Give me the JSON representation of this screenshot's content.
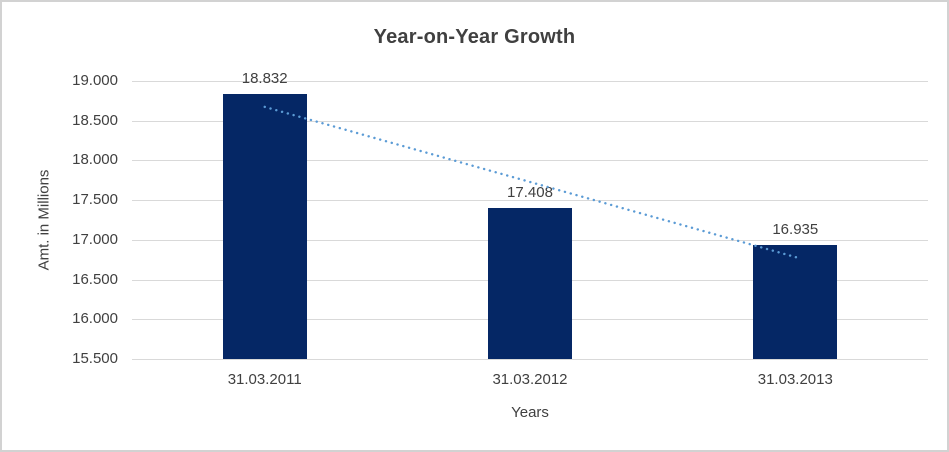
{
  "chart_data": {
    "type": "bar",
    "title": "Year-on-Year Growth",
    "ylabel": "Amt. in Millions",
    "xlabel": "Years",
    "categories": [
      "31.03.2011",
      "31.03.2012",
      "31.03.2013"
    ],
    "values": [
      18832,
      17408,
      16935
    ],
    "value_labels": [
      "18.832",
      "17.408",
      "16.935"
    ],
    "ylim": [
      15500,
      19000
    ],
    "ytick_step": 500,
    "ytick_labels": [
      "19.000",
      "18.500",
      "18.000",
      "17.500",
      "17.000",
      "16.500",
      "16.000",
      "15.500"
    ],
    "grid": true,
    "legend": "none",
    "trendline": {
      "type": "linear",
      "style": "dotted",
      "color": "#5b9bd5"
    },
    "colors": {
      "bar": "#052765",
      "gridline": "#d9d9d9",
      "axis_text": "#404040",
      "title_text": "#404040",
      "background": "#ffffff",
      "frame_border": "#d2d2d2"
    }
  }
}
